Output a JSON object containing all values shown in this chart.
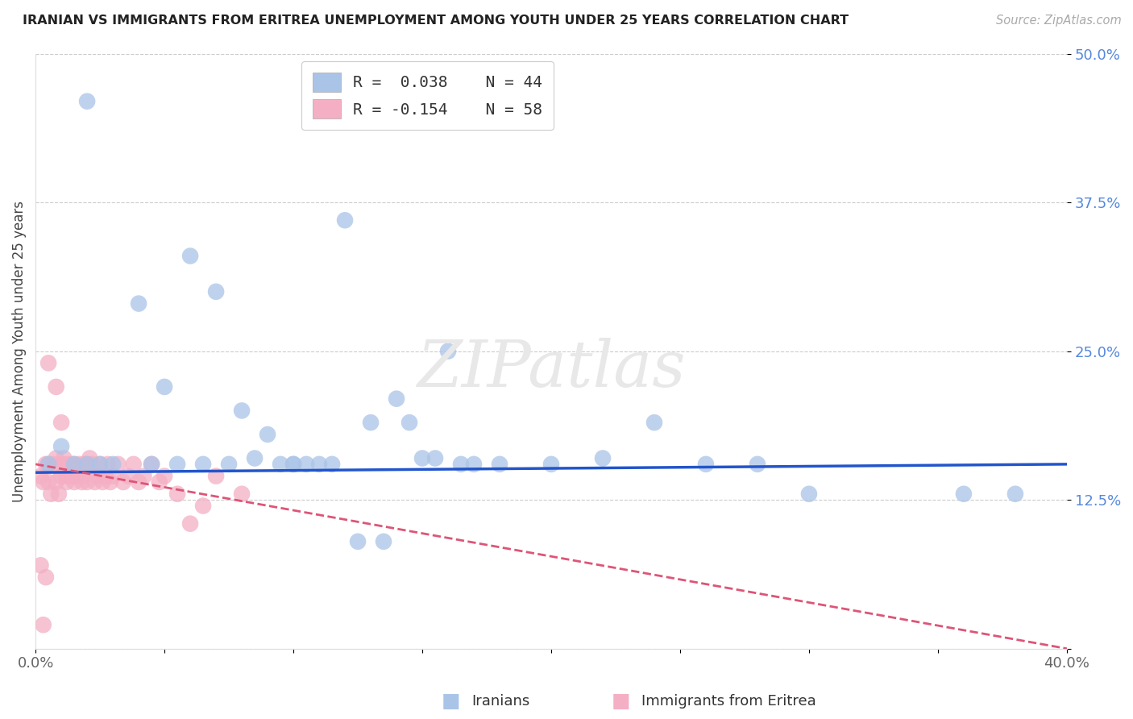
{
  "title": "IRANIAN VS IMMIGRANTS FROM ERITREA UNEMPLOYMENT AMONG YOUTH UNDER 25 YEARS CORRELATION CHART",
  "source": "Source: ZipAtlas.com",
  "ylabel": "Unemployment Among Youth under 25 years",
  "xlabel_iranians": "Iranians",
  "xlabel_eritreans": "Immigrants from Eritrea",
  "xmin": 0.0,
  "xmax": 0.4,
  "ymin": 0.0,
  "ymax": 0.5,
  "iranian_color": "#aac4e8",
  "eritrean_color": "#f4afc4",
  "line_iranian_color": "#2255cc",
  "line_eritrean_color": "#dd5577",
  "iranian_R": 0.038,
  "iranian_N": 44,
  "eritrean_R": -0.154,
  "eritrean_N": 58,
  "iranian_x": [
    0.005,
    0.01,
    0.015,
    0.02,
    0.02,
    0.025,
    0.03,
    0.04,
    0.045,
    0.05,
    0.055,
    0.06,
    0.07,
    0.075,
    0.08,
    0.09,
    0.1,
    0.1,
    0.11,
    0.12,
    0.13,
    0.14,
    0.15,
    0.16,
    0.17,
    0.18,
    0.2,
    0.22,
    0.24,
    0.26,
    0.28,
    0.3,
    0.36,
    0.38,
    0.065,
    0.085,
    0.095,
    0.105,
    0.115,
    0.125,
    0.135,
    0.145,
    0.155,
    0.165
  ],
  "iranian_y": [
    0.155,
    0.17,
    0.155,
    0.46,
    0.155,
    0.155,
    0.155,
    0.29,
    0.155,
    0.22,
    0.155,
    0.33,
    0.3,
    0.155,
    0.2,
    0.18,
    0.155,
    0.155,
    0.155,
    0.36,
    0.19,
    0.21,
    0.16,
    0.25,
    0.155,
    0.155,
    0.155,
    0.16,
    0.19,
    0.155,
    0.155,
    0.13,
    0.13,
    0.13,
    0.155,
    0.16,
    0.155,
    0.155,
    0.155,
    0.09,
    0.09,
    0.19,
    0.16,
    0.155
  ],
  "eritrean_x": [
    0.002,
    0.003,
    0.004,
    0.005,
    0.005,
    0.006,
    0.007,
    0.008,
    0.008,
    0.009,
    0.01,
    0.01,
    0.011,
    0.012,
    0.012,
    0.013,
    0.014,
    0.015,
    0.015,
    0.016,
    0.017,
    0.018,
    0.018,
    0.019,
    0.02,
    0.02,
    0.021,
    0.022,
    0.023,
    0.024,
    0.025,
    0.026,
    0.027,
    0.028,
    0.029,
    0.03,
    0.032,
    0.034,
    0.036,
    0.038,
    0.04,
    0.042,
    0.045,
    0.048,
    0.05,
    0.055,
    0.06,
    0.065,
    0.07,
    0.08,
    0.002,
    0.003,
    0.004,
    0.005,
    0.008,
    0.01,
    0.012,
    0.015
  ],
  "eritrean_y": [
    0.145,
    0.14,
    0.155,
    0.14,
    0.155,
    0.13,
    0.155,
    0.14,
    0.22,
    0.13,
    0.145,
    0.19,
    0.16,
    0.155,
    0.14,
    0.145,
    0.155,
    0.14,
    0.155,
    0.145,
    0.155,
    0.14,
    0.145,
    0.155,
    0.14,
    0.155,
    0.16,
    0.155,
    0.14,
    0.145,
    0.155,
    0.14,
    0.145,
    0.155,
    0.14,
    0.145,
    0.155,
    0.14,
    0.145,
    0.155,
    0.14,
    0.145,
    0.155,
    0.14,
    0.145,
    0.13,
    0.105,
    0.12,
    0.145,
    0.13,
    0.07,
    0.02,
    0.06,
    0.24,
    0.16,
    0.155,
    0.145,
    0.145
  ],
  "line_iranian_x0": 0.0,
  "line_iranian_x1": 0.4,
  "line_iranian_y0": 0.148,
  "line_iranian_y1": 0.155,
  "line_eritrean_x0": 0.0,
  "line_eritrean_x1": 0.4,
  "line_eritrean_y0": 0.155,
  "line_eritrean_y1": 0.0
}
